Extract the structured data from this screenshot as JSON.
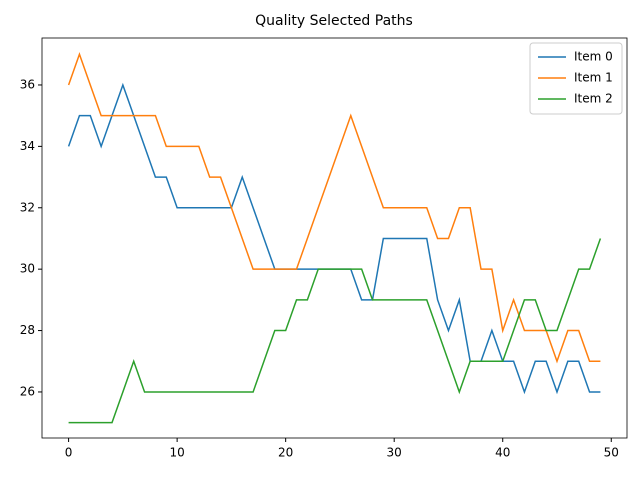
{
  "chart_data": {
    "type": "line",
    "title": "Quality Selected Paths",
    "x": [
      0,
      1,
      2,
      3,
      4,
      5,
      6,
      7,
      8,
      9,
      10,
      11,
      12,
      13,
      14,
      15,
      16,
      17,
      18,
      19,
      20,
      21,
      22,
      23,
      24,
      25,
      26,
      27,
      28,
      29,
      30,
      31,
      32,
      33,
      34,
      35,
      36,
      37,
      38,
      39,
      40,
      41,
      42,
      43,
      44,
      45,
      46,
      47,
      48,
      49
    ],
    "series": [
      {
        "name": "Item 0",
        "color": "#1f77b4",
        "values": [
          34,
          35,
          35,
          34,
          35,
          36,
          35,
          34,
          33,
          33,
          32,
          32,
          32,
          32,
          32,
          32,
          33,
          32,
          31,
          30,
          30,
          30,
          30,
          30,
          30,
          30,
          30,
          29,
          29,
          31,
          31,
          31,
          31,
          31,
          29,
          28,
          29,
          27,
          27,
          28,
          27,
          27,
          26,
          27,
          27,
          26,
          27,
          27,
          26,
          26
        ]
      },
      {
        "name": "Item 1",
        "color": "#ff7f0e",
        "values": [
          36,
          37,
          36,
          35,
          35,
          35,
          35,
          35,
          35,
          34,
          34,
          34,
          34,
          33,
          33,
          32,
          31,
          30,
          30,
          30,
          30,
          30,
          31,
          32,
          33,
          34,
          35,
          34,
          33,
          32,
          32,
          32,
          32,
          32,
          31,
          31,
          32,
          32,
          30,
          30,
          28,
          29,
          28,
          28,
          28,
          27,
          28,
          28,
          27,
          27
        ]
      },
      {
        "name": "Item 2",
        "color": "#2ca02c",
        "values": [
          25,
          25,
          25,
          25,
          25,
          26,
          27,
          26,
          26,
          26,
          26,
          26,
          26,
          26,
          26,
          26,
          26,
          26,
          27,
          28,
          28,
          29,
          29,
          30,
          30,
          30,
          30,
          30,
          29,
          29,
          29,
          29,
          29,
          29,
          28,
          27,
          26,
          27,
          27,
          27,
          27,
          28,
          29,
          29,
          28,
          28,
          29,
          30,
          30,
          31
        ]
      }
    ],
    "xlim": [
      -2.45,
      51.45
    ],
    "ylim": [
      24.5,
      37.53
    ],
    "xticks": [
      0,
      10,
      20,
      30,
      40,
      50
    ],
    "yticks": [
      26,
      28,
      30,
      32,
      34,
      36
    ],
    "legend": "upper right"
  }
}
